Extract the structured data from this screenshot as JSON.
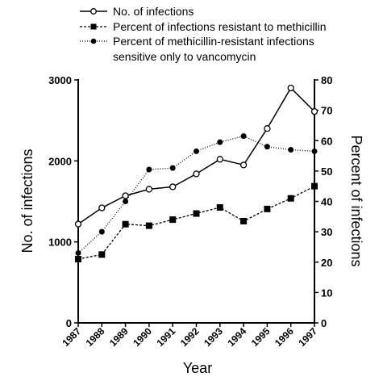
{
  "chart_data": {
    "type": "line",
    "xlabel": "Year",
    "ylabel_left": "No. of infections",
    "ylabel_right": "Percent of infections",
    "ylim_left": [
      0,
      3000
    ],
    "ylim_right": [
      0,
      80
    ],
    "yticks_left": [
      "0",
      "1000",
      "2000",
      "3000"
    ],
    "yticks_right": [
      "0",
      "10",
      "20",
      "30",
      "40",
      "50",
      "60",
      "70",
      "80"
    ],
    "x": [
      "1987",
      "1988",
      "1989",
      "1990",
      "1991",
      "1992",
      "1993",
      "1994",
      "1995",
      "1996",
      "1997"
    ],
    "series": [
      {
        "name": "No. of infections",
        "axis": "left",
        "marker": "open-circle",
        "line": "solid",
        "values": [
          1220,
          1420,
          1570,
          1650,
          1680,
          1840,
          2020,
          1950,
          2400,
          2900,
          2610
        ]
      },
      {
        "name": "Percent of infections resistant to methicillin",
        "axis": "right",
        "marker": "filled-square",
        "line": "dashed",
        "values": [
          21,
          22.5,
          32.5,
          32,
          34,
          36,
          38,
          33.5,
          37.5,
          41,
          45
        ]
      },
      {
        "name": "Percent of methicillin-resistant infections sensitive only to vancomycin",
        "axis": "right",
        "marker": "filled-circle",
        "line": "dotted",
        "values": [
          23,
          30,
          40,
          50.5,
          51,
          56.5,
          59.5,
          61.5,
          58,
          57,
          56.5
        ]
      }
    ],
    "legend": {
      "placement": "top-left",
      "entries": [
        [
          "No. of infections"
        ],
        [
          "Percent of infections resistant to methicillin"
        ],
        [
          "Percent of methicillin-resistant infections",
          "sensitive only to vancomycin"
        ]
      ]
    }
  }
}
